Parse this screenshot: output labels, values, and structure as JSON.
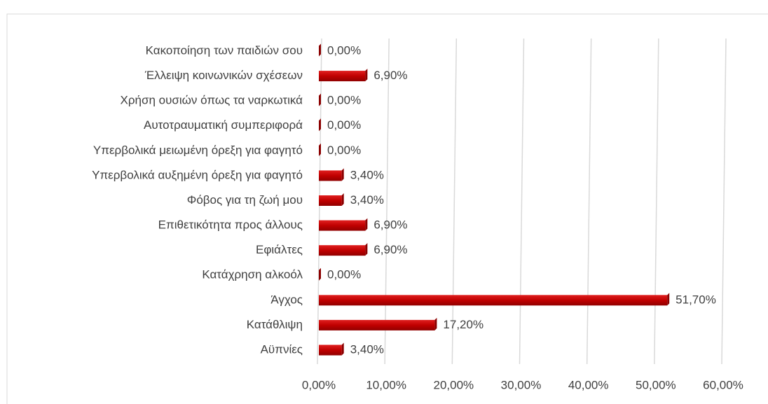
{
  "chart_data": {
    "type": "bar",
    "orientation": "horizontal",
    "color": "#c00000",
    "categories": [
      "Κακοποίηση των παιδιών σου",
      "Έλλειψη κοινωνικών σχέσεων",
      "Χρήση ουσιών όπως τα ναρκωτικά",
      "Αυτοτραυματική συμπεριφορά",
      "Υπερβολικά μειωμένη όρεξη για φαγητό",
      "Υπερβολικά αυξημένη όρεξη για φαγητό",
      "Φόβος για τη ζωή μου",
      "Επιθετικότητα προς άλλους",
      "Εφιάλτες",
      "Κατάχρηση αλκοόλ",
      "Άγχος",
      "Κατάθλιψη",
      "Αϋπνίες"
    ],
    "values": [
      0,
      6.9,
      0,
      0,
      0,
      3.4,
      3.4,
      6.9,
      6.9,
      0,
      51.7,
      17.2,
      3.4
    ],
    "value_labels": [
      "0,00%",
      "6,90%",
      "0,00%",
      "0,00%",
      "0,00%",
      "3,40%",
      "3,40%",
      "6,90%",
      "6,90%",
      "0,00%",
      "51,70%",
      "17,20%",
      "3,40%"
    ],
    "xlim": [
      0,
      60
    ],
    "xticks": [
      {
        "value": 0,
        "label": "0,00%"
      },
      {
        "value": 10,
        "label": "10,00%"
      },
      {
        "value": 20,
        "label": "20,00%"
      },
      {
        "value": 30,
        "label": "30,00%"
      },
      {
        "value": 40,
        "label": "40,00%"
      },
      {
        "value": 50,
        "label": "50,00%"
      },
      {
        "value": 60,
        "label": "60,00%"
      }
    ],
    "grid": true
  }
}
